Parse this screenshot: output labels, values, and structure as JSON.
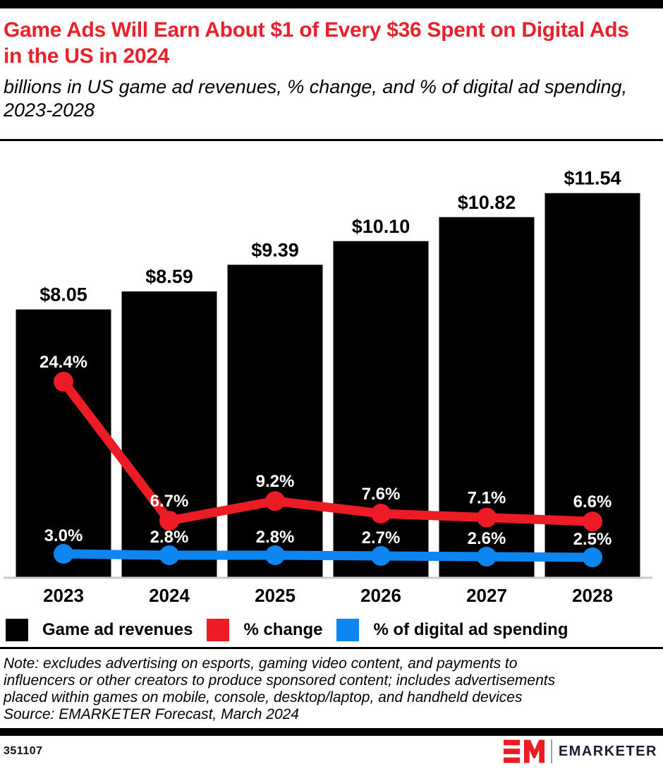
{
  "header": {
    "title": "Game Ads Will Earn About $1 of Every $36 Spent on Digital Ads in the US in 2024",
    "subtitle": "billions in US game ad revenues, % change, and % of digital ad spending, 2023-2028"
  },
  "colors": {
    "title_red": "#E8212B",
    "series_black": "#000000",
    "series_red": "#ED1C24",
    "series_blue": "#0E86F2",
    "axis_gray": "#C9C9C9",
    "label_white": "#FFFFFF"
  },
  "chart_data": {
    "type": "bar+line combo",
    "categories": [
      "2023",
      "2024",
      "2025",
      "2026",
      "2027",
      "2028"
    ],
    "series": [
      {
        "name": "Game ad revenues",
        "type": "bar",
        "unit": "US$ billions",
        "values": [
          8.05,
          8.59,
          9.39,
          10.1,
          10.82,
          11.54
        ],
        "labels": [
          "$8.05",
          "$8.59",
          "$9.39",
          "$10.10",
          "$10.82",
          "$11.54"
        ],
        "color": "#000000"
      },
      {
        "name": "% change",
        "type": "line",
        "unit": "%",
        "values": [
          24.4,
          6.7,
          9.2,
          7.6,
          7.1,
          6.6
        ],
        "labels": [
          "24.4%",
          "6.7%",
          "9.2%",
          "7.6%",
          "7.1%",
          "6.6%"
        ],
        "color": "#ED1C24"
      },
      {
        "name": "% of digital ad spending",
        "type": "line",
        "unit": "%",
        "values": [
          3.0,
          2.8,
          2.8,
          2.7,
          2.6,
          2.5
        ],
        "labels": [
          "3.0%",
          "2.8%",
          "2.8%",
          "2.7%",
          "2.6%",
          "2.5%"
        ],
        "color": "#0E86F2"
      }
    ],
    "title": "Game Ads Will Earn About $1 of Every $36 Spent on Digital Ads in the US in 2024",
    "xlabel": "",
    "ylabel": "",
    "grid": false,
    "legend_position": "bottom"
  },
  "legend": {
    "items": [
      {
        "label": "Game ad revenues",
        "color": "#000000"
      },
      {
        "label": "% change",
        "color": "#ED1C24"
      },
      {
        "label": "% of digital ad spending",
        "color": "#0E86F2"
      }
    ]
  },
  "note": {
    "lines": [
      "Note: excludes advertising on esports, gaming video content, and payments to",
      "influencers or other creators to produce sponsored content; includes advertisements",
      "placed within games on mobile, console, desktop/laptop, and handheld devices",
      "Source: EMARKETER Forecast, March 2024"
    ]
  },
  "footer": {
    "chart_id": "351107",
    "brand": "EMARKETER"
  }
}
